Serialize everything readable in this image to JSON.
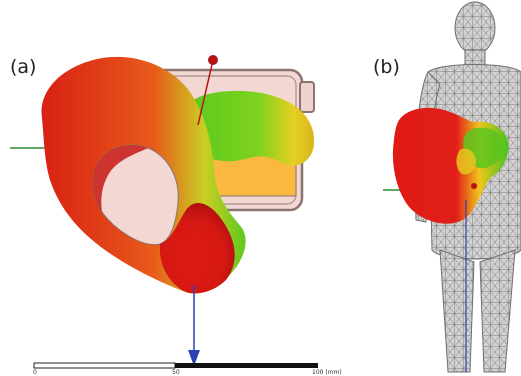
{
  "panels": {
    "a": {
      "label": "(a)"
    },
    "b": {
      "label": "(b)"
    }
  },
  "scale_bar": {
    "tick_start": "0",
    "tick_mid": "50",
    "tick_end": "100 (mm)"
  },
  "colors": {
    "pattern_max": "#e01a14",
    "pattern_mid": "#f2c51c",
    "pattern_min": "#44c41c",
    "device_housing": "#f2d7d2",
    "device_outline": "#8a7470",
    "battery": "#fbb83e",
    "axis_x": "#2f8a2f",
    "axis_z": "#2d3fb4",
    "axis_y": "#b31414",
    "phantom_mesh": "#7a7a7a"
  },
  "icons": {
    "axis_x": "green-axis-line",
    "axis_y": "red-axis-ball",
    "axis_z": "blue-axis-arrow"
  }
}
